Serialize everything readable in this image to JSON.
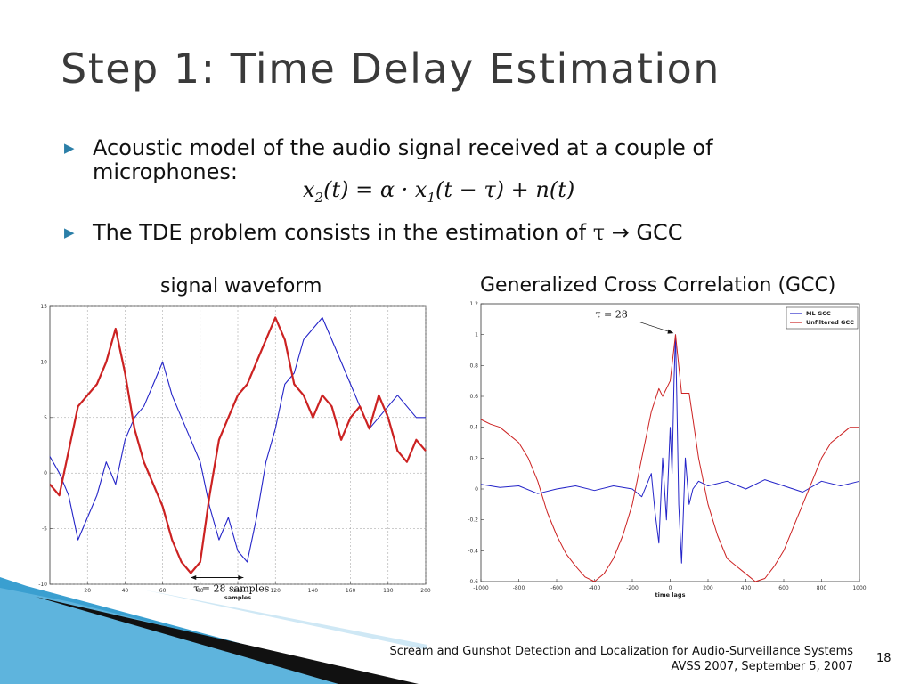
{
  "slide": {
    "title": "Step 1: Time Delay Estimation",
    "bullet1": "Acoustic model of the audio signal received at a couple of microphones:",
    "bullet2_prefix": "The TDE problem consists in the estimation of ",
    "bullet2_tau": "τ",
    "bullet2_arrow": " → GCC",
    "equation": {
      "x": "x",
      "sub2": "2",
      "mid": "(t) = α · x",
      "sub1": "1",
      "rest": "(t − τ) + n(t)"
    },
    "caption_left": "signal waveform",
    "caption_right": "Generalized Cross Correlation (GCC)",
    "footer_title": "Scream and Gunshot Detection and Localization for Audio-Surveillance Systems",
    "footer_venue": "AVSS 2007, September 5, 2007",
    "page_number": "18",
    "colors": {
      "accent": "#2b7fa8",
      "red_series": "#cc2222",
      "blue_series": "#2424c8",
      "decor_blue": "#3a9fd0"
    }
  },
  "chart_data": [
    {
      "type": "line",
      "xlabel": "samples",
      "ylabel": "",
      "xlim": [
        0,
        200
      ],
      "ylim": [
        -10,
        15
      ],
      "x_ticks": [
        20,
        40,
        60,
        80,
        100,
        120,
        140,
        160,
        180,
        200
      ],
      "x_tick_labels": [
        "20",
        "40",
        "60",
        "80",
        "100",
        "120",
        "140",
        "160",
        "180",
        "200"
      ],
      "y_ticks": [
        -10,
        -5,
        0,
        5,
        10,
        15
      ],
      "y_tick_labels": [
        "-10",
        "-5",
        "0",
        "5",
        "10",
        "15"
      ],
      "annotation": "τ = 28 samples",
      "annotation_span": [
        75,
        103
      ],
      "grid": true,
      "series": [
        {
          "color": "#2424c8",
          "x": [
            0,
            5,
            10,
            15,
            20,
            25,
            30,
            35,
            40,
            45,
            50,
            55,
            60,
            65,
            70,
            75,
            80,
            85,
            90,
            95,
            100,
            105,
            110,
            115,
            120,
            125,
            130,
            135,
            140,
            145,
            150,
            155,
            160,
            165,
            170,
            175,
            180,
            185,
            190,
            195,
            200
          ],
          "y": [
            1.5,
            0,
            -2,
            -6,
            -4,
            -2,
            1,
            -1,
            3,
            5,
            6,
            8,
            10,
            7,
            5,
            3,
            1,
            -3,
            -6,
            -4,
            -7,
            -8,
            -4,
            1,
            4,
            8,
            9,
            12,
            13,
            14,
            12,
            10,
            8,
            6,
            4,
            5,
            6,
            7,
            6,
            5,
            5
          ]
        },
        {
          "color": "#cc2222",
          "x": [
            0,
            5,
            10,
            15,
            20,
            25,
            30,
            35,
            40,
            45,
            50,
            55,
            60,
            65,
            70,
            75,
            80,
            85,
            90,
            95,
            100,
            105,
            110,
            115,
            120,
            125,
            130,
            135,
            140,
            145,
            150,
            155,
            160,
            165,
            170,
            175,
            180,
            185,
            190,
            195,
            200
          ],
          "y": [
            -1,
            -2,
            2,
            6,
            7,
            8,
            10,
            13,
            9,
            4,
            1,
            -1,
            -3,
            -6,
            -8,
            -9,
            -8,
            -2,
            3,
            5,
            7,
            8,
            10,
            12,
            14,
            12,
            8,
            7,
            5,
            7,
            6,
            3,
            5,
            6,
            4,
            7,
            5,
            2,
            1,
            3,
            2
          ]
        }
      ]
    },
    {
      "type": "line",
      "xlabel": "time lags",
      "ylabel": "",
      "xlim": [
        -1000,
        1000
      ],
      "ylim": [
        -0.6,
        1.2
      ],
      "x_ticks": [
        -1000,
        -800,
        -600,
        -400,
        -200,
        0,
        200,
        400,
        600,
        800,
        1000
      ],
      "x_tick_labels": [
        "-1000",
        "-800",
        "-600",
        "-400",
        "-200",
        "0",
        "200",
        "400",
        "600",
        "800",
        "1000"
      ],
      "y_ticks": [
        -0.6,
        -0.4,
        -0.2,
        0,
        0.2,
        0.4,
        0.6,
        0.8,
        1,
        1.2
      ],
      "y_tick_labels": [
        "-0.6",
        "-0.4",
        "-0.2",
        "0",
        "0.2",
        "0.4",
        "0.6",
        "0.8",
        "1",
        "1.2"
      ],
      "annotation": "τ = 28",
      "annotation_x": 28,
      "legend_position": "top-right",
      "grid": false,
      "series": [
        {
          "name": "ML GCC",
          "color": "#2424c8",
          "x": [
            -1000,
            -900,
            -800,
            -700,
            -600,
            -500,
            -400,
            -300,
            -200,
            -150,
            -100,
            -80,
            -60,
            -40,
            -20,
            0,
            10,
            20,
            28,
            35,
            45,
            60,
            80,
            100,
            120,
            150,
            200,
            300,
            400,
            500,
            600,
            700,
            800,
            900,
            1000
          ],
          "y": [
            0.03,
            0.01,
            0.02,
            -0.03,
            0.0,
            0.02,
            -0.01,
            0.02,
            0.0,
            -0.05,
            0.1,
            -0.15,
            -0.35,
            0.2,
            -0.2,
            0.4,
            0.1,
            0.7,
            1.0,
            0.6,
            -0.1,
            -0.48,
            0.2,
            -0.1,
            0.0,
            0.05,
            0.02,
            0.05,
            0.0,
            0.06,
            0.02,
            -0.02,
            0.05,
            0.02,
            0.05
          ]
        },
        {
          "name": "Unfiltered GCC",
          "color": "#cc2222",
          "x": [
            -1000,
            -950,
            -900,
            -850,
            -800,
            -750,
            -700,
            -650,
            -600,
            -550,
            -500,
            -450,
            -400,
            -350,
            -300,
            -250,
            -200,
            -150,
            -100,
            -60,
            -40,
            0,
            28,
            60,
            100,
            150,
            200,
            250,
            300,
            350,
            400,
            450,
            500,
            550,
            600,
            650,
            700,
            750,
            800,
            850,
            900,
            950,
            1000
          ],
          "y": [
            0.45,
            0.42,
            0.4,
            0.35,
            0.3,
            0.2,
            0.05,
            -0.15,
            -0.3,
            -0.42,
            -0.5,
            -0.57,
            -0.6,
            -0.55,
            -0.45,
            -0.3,
            -0.1,
            0.2,
            0.5,
            0.65,
            0.6,
            0.7,
            1.0,
            0.62,
            0.62,
            0.2,
            -0.1,
            -0.3,
            -0.45,
            -0.5,
            -0.55,
            -0.6,
            -0.58,
            -0.5,
            -0.4,
            -0.25,
            -0.1,
            0.05,
            0.2,
            0.3,
            0.35,
            0.4,
            0.4
          ]
        }
      ]
    }
  ]
}
